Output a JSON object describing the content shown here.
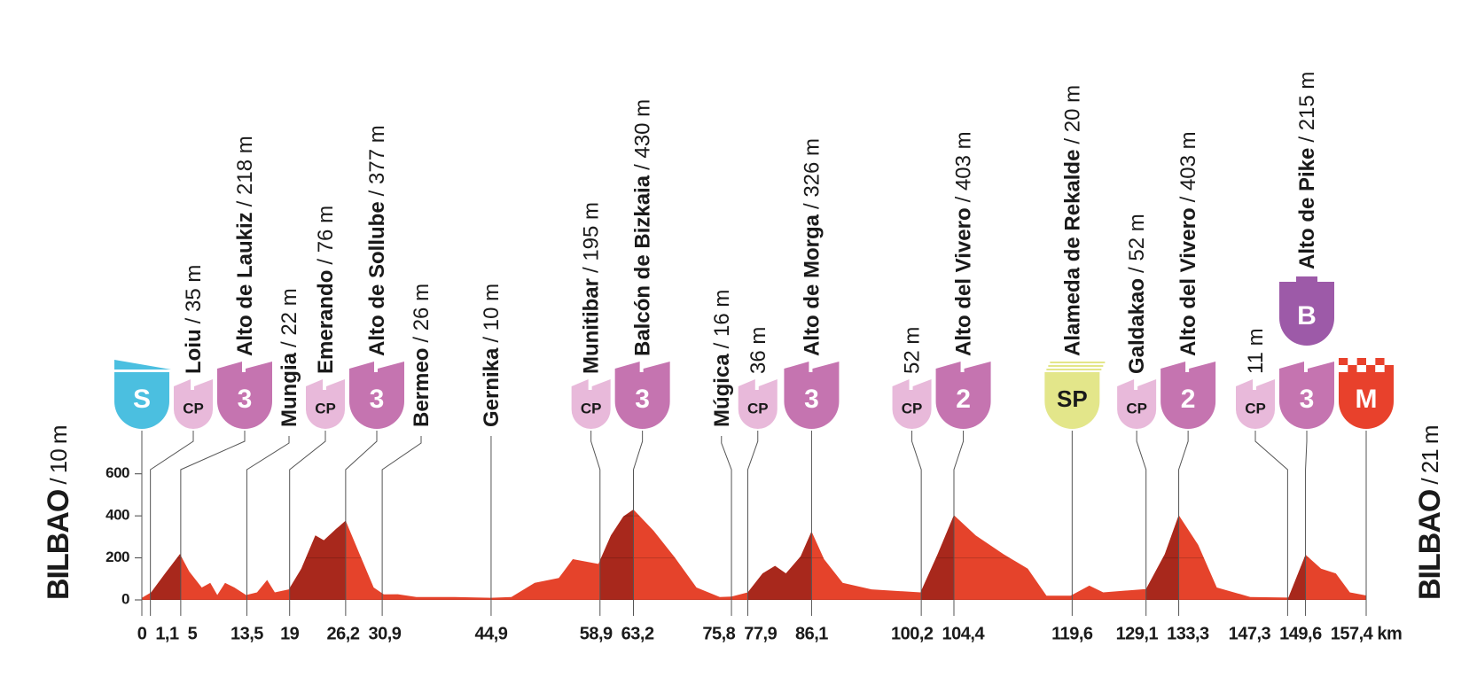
{
  "chart_data": {
    "type": "area",
    "color": "#e5432b",
    "climb_color": "#a8281c",
    "grid": true,
    "start": {
      "name": "BILBAO",
      "alt": "/ 10 m"
    },
    "finish": {
      "name": "BILBAO",
      "alt": "/ 21 m"
    },
    "x": [
      0,
      1.2,
      3,
      4.9,
      6.1,
      7.7,
      8.8,
      9.7,
      10.7,
      11.9,
      13.4,
      14.8,
      16.1,
      17.1,
      18.9,
      20.5,
      22.3,
      23.4,
      25,
      26.2,
      28,
      29.8,
      31.1,
      32.9,
      35.3,
      40.2,
      44.9,
      47.5,
      50.5,
      53.6,
      55.4,
      58.7,
      60.3,
      61.9,
      63.2,
      65.8,
      68.5,
      71.3,
      74.3,
      75.8,
      77.9,
      79.8,
      81.4,
      82.8,
      84.7,
      86.1,
      87.7,
      90.1,
      93.8,
      100.1,
      102.3,
      104.4,
      107.2,
      110.8,
      113.9,
      116.3,
      119.4,
      121.8,
      123.6,
      129.1,
      131.5,
      133.3,
      135.8,
      138.2,
      142.5,
      147.4,
      149.6,
      151.6,
      153.5,
      155.3,
      157.4
    ],
    "values": [
      10,
      36,
      126,
      218,
      135,
      59,
      81,
      23,
      81,
      59,
      23,
      36,
      95,
      36,
      50,
      149,
      307,
      284,
      338,
      377,
      217,
      59,
      26,
      27,
      14,
      14,
      10,
      14,
      81,
      104,
      194,
      171,
      307,
      397,
      430,
      329,
      203,
      59,
      14,
      16,
      36,
      126,
      162,
      126,
      207,
      326,
      194,
      81,
      50,
      36,
      217,
      403,
      307,
      217,
      149,
      20,
      20,
      68,
      36,
      52,
      217,
      403,
      262,
      59,
      14,
      11,
      215,
      149,
      126,
      36,
      21
    ],
    "xlim": [
      0,
      157.4
    ],
    "ylim": [
      0,
      700
    ],
    "yticks": [
      0,
      200,
      400,
      600
    ],
    "xticks": [
      0,
      {
        "value": 1.1,
        "label": "1,1"
      },
      5,
      {
        "value": 13.5,
        "label": "13,5"
      },
      19,
      {
        "value": 26.2,
        "label": "26,2"
      },
      {
        "value": 30.9,
        "label": "30,9"
      },
      {
        "value": 44.9,
        "label": "44,9"
      },
      {
        "value": 58.9,
        "label": "58,9"
      },
      {
        "value": 63.2,
        "label": "63,2"
      },
      {
        "value": 75.8,
        "label": "75,8"
      },
      {
        "value": 77.9,
        "label": "77,9"
      },
      {
        "value": 86.1,
        "label": "86,1"
      },
      {
        "value": 100.2,
        "label": "100,2"
      },
      {
        "value": 104.4,
        "label": "104,4"
      },
      {
        "value": 119.6,
        "label": "119,6"
      },
      {
        "value": 129.1,
        "label": "129,1"
      },
      {
        "value": 133.3,
        "label": "133,3"
      },
      {
        "value": 147.3,
        "label": "147,3"
      },
      {
        "value": 149.6,
        "label": "149,6"
      },
      {
        "value": 157.4,
        "label": "157,4 km"
      }
    ],
    "waypoints": [
      {
        "badge": "S"
      },
      {
        "name": "Loiu",
        "alt": "/ 35 m",
        "badge": "CP"
      },
      {
        "name": "Alto de Laukiz",
        "alt": "/ 218 m",
        "badge": "3"
      },
      {
        "name": "Mungia",
        "alt": "/ 22 m"
      },
      {
        "name": "Emerando",
        "alt": "/ 76 m",
        "badge": "CP"
      },
      {
        "name": "Alto de Sollube",
        "alt": "/ 377 m",
        "badge": "3"
      },
      {
        "name": "Bermeo",
        "alt": "/ 26 m"
      },
      {
        "name": "Gernika",
        "alt": "/ 10 m"
      },
      {
        "name": "Munitibar",
        "alt": "/ 195 m",
        "badge": "CP"
      },
      {
        "name": "Balcón de Bizkaia",
        "alt": "/ 430 m",
        "badge": "3"
      },
      {
        "name": "Múgica",
        "alt": "/ 16 m"
      },
      {
        "alt": "36 m",
        "badge": "CP"
      },
      {
        "name": "Alto de Morga",
        "alt": "/ 326 m",
        "badge": "3"
      },
      {
        "alt": "52 m",
        "badge": "CP"
      },
      {
        "name": "Alto del Vivero",
        "alt": "/ 403 m",
        "badge": "2"
      },
      {
        "name": "Alameda de Rekalde",
        "alt": "/ 20 m",
        "badge": "SP"
      },
      {
        "name": "Galdakao",
        "alt": "/ 52 m",
        "badge": "CP"
      },
      {
        "name": "Alto del Vivero",
        "alt": "/ 403 m",
        "badge": "2"
      },
      {
        "alt": "11 m",
        "badge": "CP"
      },
      {
        "name": "Alto de Pike",
        "alt": "/ 215 m",
        "badge": "3",
        "top_badge": "B"
      },
      {
        "badge": "M"
      }
    ]
  }
}
